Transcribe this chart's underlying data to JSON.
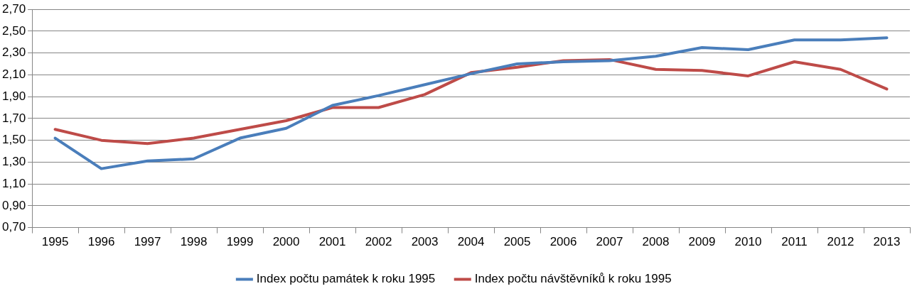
{
  "chart_data": {
    "type": "line",
    "categories": [
      "1995",
      "1996",
      "1997",
      "1998",
      "1999",
      "2000",
      "2001",
      "2002",
      "2003",
      "2004",
      "2005",
      "2006",
      "2007",
      "2008",
      "2009",
      "2010",
      "2011",
      "2012",
      "2013"
    ],
    "series": [
      {
        "name": "Index počtu památek k roku 1995",
        "color": "#4a7ebb",
        "values": [
          1.52,
          1.24,
          1.31,
          1.33,
          1.52,
          1.61,
          1.82,
          1.91,
          2.01,
          2.11,
          2.2,
          2.22,
          2.23,
          2.27,
          2.35,
          2.33,
          2.42,
          2.42,
          2.44
        ]
      },
      {
        "name": "Index počtu návštěvníků k roku 1995",
        "color": "#be4b48",
        "values": [
          1.6,
          1.5,
          1.47,
          1.52,
          1.6,
          1.68,
          1.8,
          1.8,
          1.92,
          2.12,
          2.17,
          2.23,
          2.24,
          2.15,
          2.14,
          2.09,
          2.22,
          2.15,
          1.97
        ]
      }
    ],
    "ylim": [
      0.7,
      2.7
    ],
    "yticks": [
      {
        "value": 0.7,
        "label": "0,70"
      },
      {
        "value": 0.9,
        "label": "0,90"
      },
      {
        "value": 1.1,
        "label": "1,10"
      },
      {
        "value": 1.3,
        "label": "1,30"
      },
      {
        "value": 1.5,
        "label": "1,50"
      },
      {
        "value": 1.7,
        "label": "1,70"
      },
      {
        "value": 1.9,
        "label": "1,90"
      },
      {
        "value": 2.1,
        "label": "2,10"
      },
      {
        "value": 2.3,
        "label": "2,30"
      },
      {
        "value": 2.5,
        "label": "2,50"
      },
      {
        "value": 2.7,
        "label": "2,70"
      }
    ],
    "grid": "y",
    "legend": "bottom",
    "marker": "none",
    "line_style": "solid"
  }
}
